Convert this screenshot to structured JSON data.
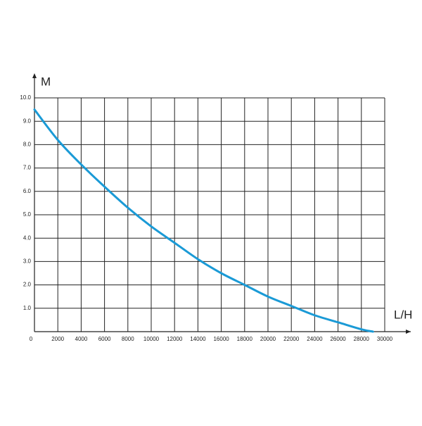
{
  "chart_data": {
    "type": "line",
    "x_label": "L/H",
    "y_label": "M",
    "x": [
      0,
      2000,
      4000,
      6000,
      8000,
      10000,
      12000,
      14000,
      16000,
      18000,
      20000,
      22000,
      24000,
      26000,
      28000,
      29000
    ],
    "series": [
      {
        "color": "#1a9ad6",
        "values": [
          9.5,
          8.2,
          7.15,
          6.2,
          5.3,
          4.5,
          3.8,
          3.1,
          2.5,
          2.0,
          1.5,
          1.1,
          0.7,
          0.4,
          0.1,
          0
        ]
      }
    ],
    "xlim": [
      0,
      30000
    ],
    "ylim": [
      0,
      10
    ],
    "xticks": [
      0,
      2000,
      4000,
      6000,
      8000,
      10000,
      12000,
      14000,
      16000,
      18000,
      20000,
      22000,
      24000,
      26000,
      28000,
      30000
    ],
    "yticks": [
      {
        "value": 1,
        "label": "1.0"
      },
      {
        "value": 2,
        "label": "2.0"
      },
      {
        "value": 3,
        "label": "3.0"
      },
      {
        "value": 4,
        "label": "4.0"
      },
      {
        "value": 5,
        "label": "5.0"
      },
      {
        "value": 6,
        "label": "6.0"
      },
      {
        "value": 7,
        "label": "7.0"
      },
      {
        "value": 8,
        "label": "8.0"
      },
      {
        "value": 9,
        "label": "9.0"
      },
      {
        "value": 10,
        "label": "10.0"
      }
    ],
    "grid": true
  }
}
